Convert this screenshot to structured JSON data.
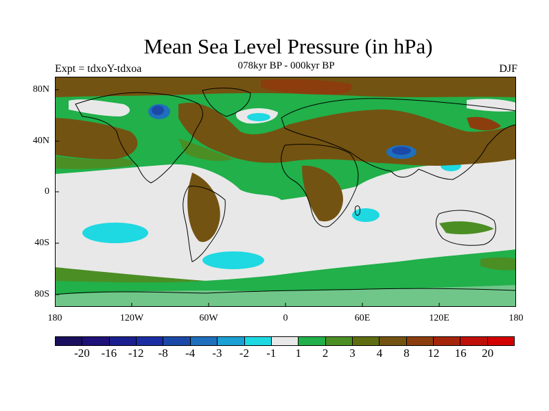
{
  "title": "Mean Sea Level Pressure (in hPa)",
  "subtitle": "078kyr BP - 000kyr BP",
  "experiment": "Expt = tdxoY-tdxoa",
  "season": "DJF",
  "map": {
    "projection": "cylindrical equidistant",
    "lon_range": [
      -180,
      180
    ],
    "lat_range": [
      -90,
      90
    ],
    "lat_labels": [
      "80N",
      "40N",
      "0",
      "40S",
      "80S"
    ],
    "lon_labels": [
      "180",
      "120W",
      "60W",
      "0",
      "60E",
      "120E",
      "180"
    ],
    "ocean_background_color": "#21b04a",
    "features": [
      {
        "name": "strong low over Tibetan Plateau",
        "range": "-8 to -4"
      },
      {
        "name": "low over northern Canada",
        "range": "-8 to -3"
      },
      {
        "name": "high over Siberia and Northern Eurasia",
        "range": "4 to 12"
      },
      {
        "name": "broad weak change over tropics and Southern Ocean",
        "range": "-1 to 1"
      }
    ]
  },
  "colorbar": {
    "colors": [
      "#1a0f5e",
      "#1e1177",
      "#1c1f8f",
      "#1b2ea4",
      "#1c49a8",
      "#1f6fbc",
      "#1aa0d2",
      "#1ed8e2",
      "#e8e8e8",
      "#21b04a",
      "#4b8e24",
      "#5f6d12",
      "#735311",
      "#8c3d0e",
      "#a5250b",
      "#bf0f09",
      "#d40000"
    ],
    "labels": [
      "-20",
      "-16",
      "-12",
      "-8",
      "-4",
      "-3",
      "-2",
      "-1",
      "1",
      "2",
      "3",
      "4",
      "8",
      "12",
      "16",
      "20"
    ]
  }
}
